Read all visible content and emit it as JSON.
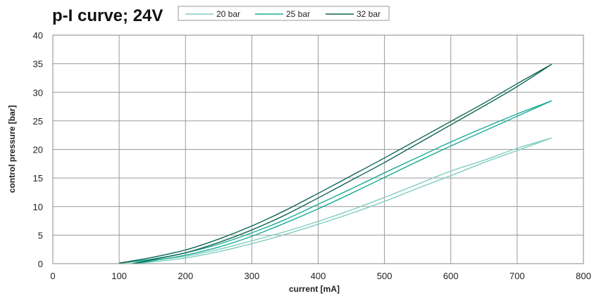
{
  "chart_data": {
    "type": "line",
    "title": "p-I curve; 24V",
    "xlabel": "current [mA]",
    "ylabel": "control pressure [bar]",
    "xlim": [
      0,
      800
    ],
    "ylim": [
      0,
      40
    ],
    "xticks": [
      0,
      100,
      200,
      300,
      400,
      500,
      600,
      700,
      800
    ],
    "yticks": [
      0,
      5,
      10,
      15,
      20,
      25,
      30,
      35,
      40
    ],
    "grid": true,
    "legend_position": "top",
    "series": [
      {
        "name": "20 bar",
        "color": "#7fcdbf",
        "curves": [
          {
            "x": [
              100,
              150,
              200,
              250,
              300,
              350,
              400,
              450,
              500,
              550,
              600,
              650,
              700,
              752
            ],
            "y": [
              0.1,
              0.6,
              1.3,
              2.5,
              4.0,
              5.6,
              7.4,
              9.4,
              11.6,
              13.9,
              16.2,
              18.1,
              20.2,
              22.0
            ]
          },
          {
            "x": [
              120,
              150,
              200,
              250,
              300,
              350,
              400,
              450,
              500,
              550,
              600,
              650,
              700,
              752
            ],
            "y": [
              0.0,
              0.3,
              1.0,
              2.1,
              3.5,
              5.1,
              6.9,
              8.8,
              10.9,
              13.2,
              15.4,
              17.7,
              19.8,
              22.0
            ]
          }
        ]
      },
      {
        "name": "25 bar",
        "color": "#19ab96",
        "curves": [
          {
            "x": [
              100,
              150,
              200,
              250,
              300,
              350,
              400,
              450,
              500,
              550,
              600,
              650,
              700,
              752
            ],
            "y": [
              0.1,
              0.8,
              1.9,
              3.4,
              5.4,
              7.7,
              10.4,
              13.1,
              15.9,
              18.6,
              21.3,
              23.8,
              26.2,
              28.5
            ]
          },
          {
            "x": [
              120,
              150,
              200,
              250,
              300,
              350,
              400,
              450,
              500,
              550,
              600,
              650,
              700,
              752
            ],
            "y": [
              0.0,
              0.5,
              1.5,
              2.9,
              4.8,
              7.1,
              9.6,
              12.3,
              15.1,
              17.9,
              20.6,
              23.2,
              25.8,
              28.5
            ]
          }
        ]
      },
      {
        "name": "32 bar",
        "color": "#0e6652",
        "curves": [
          {
            "x": [
              100,
              150,
              200,
              250,
              300,
              350,
              400,
              450,
              500,
              550,
              600,
              650,
              700,
              752
            ],
            "y": [
              0.1,
              1.1,
              2.4,
              4.3,
              6.6,
              9.3,
              12.3,
              15.4,
              18.5,
              21.7,
              24.9,
              28.1,
              31.5,
              34.9
            ]
          },
          {
            "x": [
              120,
              150,
              200,
              250,
              300,
              350,
              400,
              450,
              500,
              550,
              600,
              650,
              700,
              752
            ],
            "y": [
              0.0,
              0.7,
              1.9,
              3.7,
              5.9,
              8.5,
              11.5,
              14.6,
              17.7,
              21.0,
              24.3,
              27.6,
              31.0,
              34.9
            ]
          }
        ]
      }
    ]
  }
}
